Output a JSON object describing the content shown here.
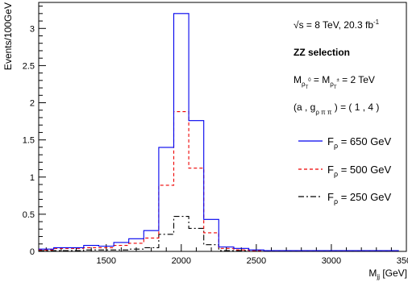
{
  "chart_data": {
    "type": "line",
    "title": "",
    "xlabel": "M_jj [GeV]",
    "ylabel": "Events/100GeV",
    "xlim": [
      1050,
      3500
    ],
    "ylim": [
      0,
      3.35
    ],
    "grid": false,
    "x_ticks": [
      {
        "value": 1500,
        "label": "1500"
      },
      {
        "value": 2000,
        "label": "2000"
      },
      {
        "value": 2500,
        "label": "2500"
      },
      {
        "value": 3000,
        "label": "3000"
      },
      {
        "value": 3500,
        "label": "3500"
      }
    ],
    "y_ticks": [
      {
        "value": 0,
        "label": "0"
      },
      {
        "value": 0.5,
        "label": "0.5"
      },
      {
        "value": 1,
        "label": "1"
      },
      {
        "value": 1.5,
        "label": "1.5"
      },
      {
        "value": 2,
        "label": "2"
      },
      {
        "value": 2.5,
        "label": "2.5"
      },
      {
        "value": 3,
        "label": "3"
      }
    ],
    "bin_edges": [
      1050,
      1150,
      1250,
      1350,
      1450,
      1550,
      1650,
      1750,
      1850,
      1950,
      2050,
      2150,
      2250,
      2350,
      2450,
      2550,
      2650,
      2750,
      2850,
      2950,
      3050,
      3150,
      3250,
      3350,
      3450
    ],
    "series": [
      {
        "name": "F_ρ = 650 GeV",
        "color": "#0000ee",
        "dash": "solid",
        "values": [
          0.03,
          0.05,
          0.05,
          0.08,
          0.07,
          0.12,
          0.17,
          0.28,
          1.4,
          3.2,
          1.76,
          0.43,
          0.06,
          0.04,
          0.02,
          0.01,
          0.01,
          0.01,
          0.01,
          0.01,
          0.01,
          0.01,
          0.01,
          0.01
        ]
      },
      {
        "name": "F_ρ = 500 GeV",
        "color": "#ee0000",
        "dash": "dashed",
        "values": [
          0.02,
          0.04,
          0.04,
          0.05,
          0.05,
          0.08,
          0.11,
          0.18,
          0.89,
          1.88,
          1.12,
          0.25,
          0.04,
          0.02,
          0.01,
          0.01,
          0.01,
          0.01,
          0.01,
          0.01,
          0.01,
          0.01,
          0.01,
          0.01
        ]
      },
      {
        "name": "F_ρ = 250 GeV",
        "color": "#000000",
        "dash": "dashdot",
        "values": [
          0.01,
          0.01,
          0.01,
          0.02,
          0.02,
          0.02,
          0.03,
          0.05,
          0.23,
          0.47,
          0.31,
          0.09,
          0.01,
          0.01,
          0.0,
          0.0,
          0.0,
          0.0,
          0.0,
          0.0,
          0.0,
          0.0,
          0.0,
          0.0
        ]
      }
    ],
    "legend_placement": "right",
    "annotations": {
      "energy": "√s = 8 TeV, 20.3 fb",
      "energy_sup": "-1",
      "selection": "ZZ selection",
      "mass_line": "M",
      "mass_sub1": "ρ",
      "mass_subsub1": "T",
      "mass_sup1": "0",
      "mass_eq": " = M",
      "mass_sub2": "ρ",
      "mass_subsub2": "T",
      "mass_sup2": "±",
      "mass_val": " = 2 TeV",
      "coupling_open": "(a , g",
      "coupling_sub": "ρ π π",
      "coupling_close": " ) = ( 1 , 4 )"
    },
    "legend": [
      {
        "main": "F",
        "sub": "ρ",
        "rest": " = 650 GeV"
      },
      {
        "main": "F",
        "sub": "ρ",
        "rest": " = 500 GeV"
      },
      {
        "main": "F",
        "sub": "ρ",
        "rest": " = 250 GeV"
      }
    ],
    "xlabel_main": "M",
    "xlabel_sub": "jj",
    "xlabel_rest": " [GeV]"
  }
}
